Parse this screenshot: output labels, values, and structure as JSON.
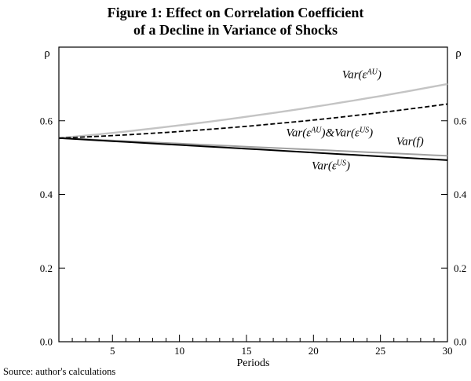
{
  "header": {
    "title_line1": "Figure 1: Effect on Correlation Coefficient",
    "title_line2": "of a Decline in Variance of Shocks"
  },
  "source": {
    "text": "Source: author's calculations"
  },
  "chart_data": {
    "type": "line",
    "title": "Figure 1: Effect on Correlation Coefficient of a Decline in Variance of Shocks",
    "xlabel": "Periods",
    "ylabel_left": "ρ",
    "ylabel_right": "ρ",
    "xlim": [
      1,
      30
    ],
    "ylim": [
      0,
      0.8
    ],
    "x_major_ticks": [
      5,
      10,
      15,
      20,
      25,
      30
    ],
    "x_minor_step": 1,
    "y_ticks": [
      0.0,
      0.2,
      0.4,
      0.6
    ],
    "y_tick_labels": [
      "0.0",
      "0.2",
      "0.4",
      "0.6"
    ],
    "grid": false,
    "legend_position": "none",
    "x": [
      1,
      2,
      3,
      4,
      5,
      6,
      7,
      8,
      9,
      10,
      11,
      12,
      13,
      14,
      15,
      16,
      17,
      18,
      19,
      20,
      21,
      22,
      23,
      24,
      25,
      26,
      27,
      28,
      29,
      30
    ],
    "series": [
      {
        "name": "Var(eps^AU)",
        "color": "#c4c4c4",
        "width": 2.4,
        "dash": null,
        "values": [
          0.553,
          0.5563,
          0.5598,
          0.5634,
          0.5671,
          0.5709,
          0.5749,
          0.579,
          0.5832,
          0.5875,
          0.592,
          0.5965,
          0.6012,
          0.6061,
          0.611,
          0.6161,
          0.6213,
          0.6266,
          0.632,
          0.6376,
          0.6433,
          0.6491,
          0.655,
          0.6611,
          0.6672,
          0.6735,
          0.68,
          0.6865,
          0.6932,
          0.7
        ]
      },
      {
        "name": "Var(eps^AU) & Var(eps^US)",
        "color": "#000000",
        "width": 1.8,
        "dash": "6,3",
        "values": [
          0.553,
          0.5545,
          0.5562,
          0.5579,
          0.5598,
          0.5618,
          0.5639,
          0.5661,
          0.5684,
          0.5709,
          0.5735,
          0.5762,
          0.579,
          0.582,
          0.585,
          0.5882,
          0.5915,
          0.5949,
          0.5985,
          0.6021,
          0.6059,
          0.6098,
          0.6139,
          0.618,
          0.6223,
          0.6267,
          0.6313,
          0.6359,
          0.6407,
          0.6456
        ]
      },
      {
        "name": "Var(f)",
        "color": "#a0a0a0",
        "width": 2.0,
        "dash": null,
        "values": [
          0.553,
          0.5513,
          0.5497,
          0.548,
          0.5464,
          0.5447,
          0.543,
          0.5414,
          0.5397,
          0.5381,
          0.5364,
          0.5347,
          0.5331,
          0.5314,
          0.5298,
          0.5281,
          0.5264,
          0.5248,
          0.5231,
          0.5215,
          0.5198,
          0.5181,
          0.5165,
          0.5148,
          0.5132,
          0.5115,
          0.5098,
          0.5082,
          0.5065,
          0.5049
        ]
      },
      {
        "name": "Var(eps^US)",
        "color": "#000000",
        "width": 2.0,
        "dash": null,
        "values": [
          0.553,
          0.5509,
          0.5489,
          0.5468,
          0.5447,
          0.5427,
          0.5406,
          0.5385,
          0.5364,
          0.5344,
          0.5323,
          0.5302,
          0.5282,
          0.5261,
          0.524,
          0.522,
          0.5199,
          0.5178,
          0.5157,
          0.5137,
          0.5116,
          0.5095,
          0.5075,
          0.5054,
          0.5033,
          0.5013,
          0.4992,
          0.4971,
          0.4951,
          0.493
        ]
      }
    ],
    "annotations": [
      {
        "x": 23.6,
        "y": 0.716,
        "segments": [
          {
            "t": "Var("
          },
          {
            "t": "ε"
          },
          {
            "t": "AU",
            "sup": true
          },
          {
            "t": ")"
          }
        ]
      },
      {
        "x": 21.2,
        "y": 0.558,
        "segments": [
          {
            "t": "Var("
          },
          {
            "t": "ε"
          },
          {
            "t": "AU",
            "sup": true
          },
          {
            "t": ")"
          },
          {
            "t": "&"
          },
          {
            "t": "Var("
          },
          {
            "t": "ε"
          },
          {
            "t": "US",
            "sup": true
          },
          {
            "t": ")"
          }
        ]
      },
      {
        "x": 27.2,
        "y": 0.534,
        "segments": [
          {
            "t": "Var("
          },
          {
            "t": "f"
          },
          {
            "t": ")"
          }
        ]
      },
      {
        "x": 21.3,
        "y": 0.468,
        "segments": [
          {
            "t": "Var("
          },
          {
            "t": "ε"
          },
          {
            "t": "US",
            "sup": true
          },
          {
            "t": ")"
          }
        ]
      }
    ]
  }
}
